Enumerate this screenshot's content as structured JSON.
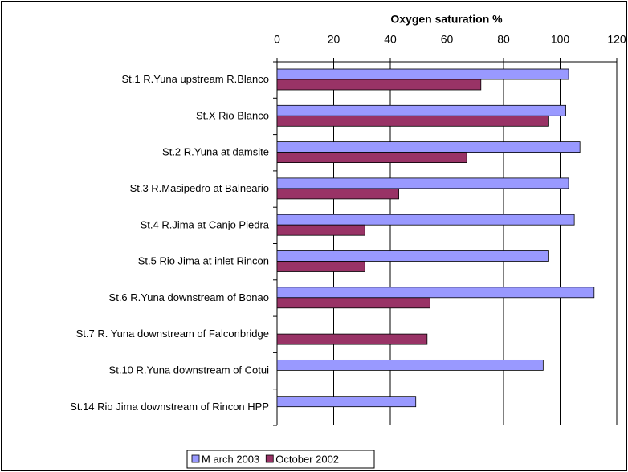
{
  "chart_data": {
    "type": "bar",
    "orientation": "horizontal",
    "title": "Oxygen saturation %",
    "categories": [
      "St.1 R.Yuna upstream R.Blanco",
      "St.X Rio Blanco",
      "St.2 R.Yuna at damsite",
      "St.3 R.Masipedro at Balneario",
      "St.4 R.Jima at Canjo Piedra",
      "St.5 Rio Jima at inlet Rincon",
      "St.6 R.Yuna downstream of Bonao",
      "St.7 R. Yuna downstream of Falconbridge",
      "St.10 R.Yuna downstream of Cotui",
      "St.14 Rio Jima downstream of Rincon HPP"
    ],
    "series": [
      {
        "name": "M arch 2003",
        "color": "#9999ff",
        "values": [
          103,
          102,
          107,
          103,
          105,
          96,
          112,
          null,
          94,
          49
        ]
      },
      {
        "name": "October 2002",
        "color": "#993366",
        "values": [
          72,
          96,
          67,
          43,
          31,
          31,
          54,
          53,
          null,
          null
        ]
      }
    ],
    "xlim": [
      0,
      120
    ],
    "xticks": [
      0,
      20,
      40,
      60,
      80,
      100,
      120
    ],
    "grid": true,
    "legend": "bottom"
  }
}
